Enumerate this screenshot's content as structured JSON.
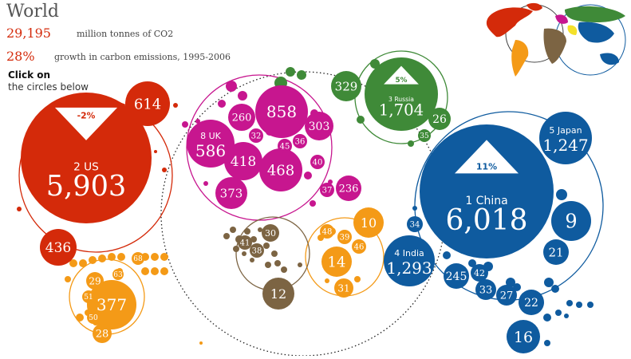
{
  "header": {
    "title": "World",
    "emissions_value": "29,195",
    "emissions_unit": "million tonnes of CO2",
    "growth_value": "28%",
    "growth_label": "growth in carbon emissions, 1995-2006",
    "instruction_line1": "Click on",
    "instruction_line2": "the circles below"
  },
  "colors": {
    "red": "#d42a0a",
    "orange": "#f49a17",
    "magenta": "#c7168f",
    "green": "#3f8a38",
    "blue": "#0f5b9f",
    "brown": "#7c6443",
    "map_red": "#d42a0a",
    "map_orange": "#f49a17",
    "map_green": "#3f8a38",
    "map_yellow": "#f4e12a",
    "map_brown": "#7c6443",
    "map_blue": "#0f5b9f",
    "map_magenta": "#c7168f"
  },
  "chart_data": {
    "type": "bubble",
    "title": "World",
    "groups": [
      {
        "name": "Europe",
        "color": "magenta",
        "items": [
          {
            "rank": 8,
            "name": "UK",
            "value": 586
          },
          {
            "value": 858
          },
          {
            "value": 468
          },
          {
            "value": 418
          },
          {
            "value": 373
          },
          {
            "value": 303
          },
          {
            "value": 260
          },
          {
            "value": 236
          },
          {
            "value": 45
          },
          {
            "value": 40
          },
          {
            "value": 37
          },
          {
            "value": 36
          },
          {
            "value": 32
          }
        ]
      },
      {
        "name": "North America",
        "color": "red",
        "items": [
          {
            "rank": 2,
            "name": "US",
            "value": 5903,
            "growth": "-2%"
          },
          {
            "value": 614
          },
          {
            "value": 436
          }
        ]
      },
      {
        "name": "Latin America",
        "color": "orange",
        "items": [
          {
            "value": 377
          },
          {
            "value": 68
          },
          {
            "value": 63
          },
          {
            "value": 51
          },
          {
            "value": 50
          },
          {
            "value": 29
          },
          {
            "value": 28
          }
        ]
      },
      {
        "name": "Russia region",
        "color": "green",
        "items": [
          {
            "rank": 3,
            "name": "Russia",
            "value": 1704,
            "growth": "5%"
          },
          {
            "value": 329
          },
          {
            "value": 35
          },
          {
            "value": 26
          }
        ]
      },
      {
        "name": "Africa",
        "color": "brown",
        "items": [
          {
            "value": 41
          },
          {
            "value": 38
          },
          {
            "value": 30
          },
          {
            "value": 12
          }
        ]
      },
      {
        "name": "Middle East",
        "color": "orange",
        "items": [
          {
            "value": 48
          },
          {
            "value": 46
          },
          {
            "value": 39
          },
          {
            "value": 31
          },
          {
            "value": 14
          },
          {
            "value": 10
          }
        ]
      },
      {
        "name": "Asia",
        "color": "blue",
        "items": [
          {
            "rank": 1,
            "name": "China",
            "value": 6018,
            "growth": "11%"
          },
          {
            "rank": 4,
            "name": "India",
            "value": 1293
          },
          {
            "rank": 5,
            "name": "Japan",
            "value": 1247
          },
          {
            "value": 245
          },
          {
            "value": 42
          },
          {
            "value": 34
          },
          {
            "value": 33
          },
          {
            "value": 27
          },
          {
            "value": 22
          },
          {
            "value": 21
          },
          {
            "value": 16
          },
          {
            "value": 9
          }
        ]
      }
    ]
  }
}
